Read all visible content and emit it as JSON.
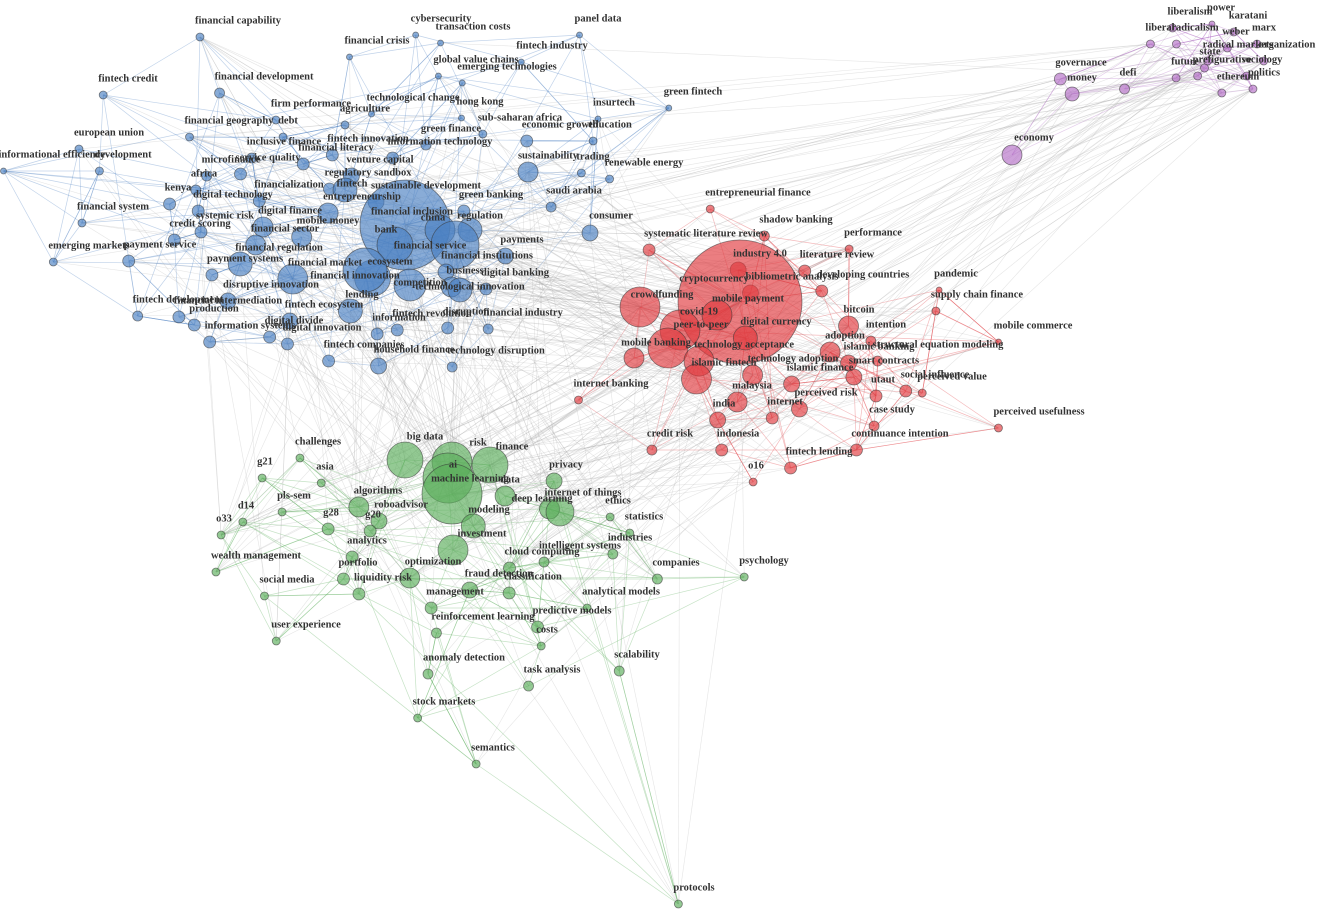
{
  "clusters": [
    {
      "color": "#4a7fc1",
      "nodes": [
        "financial capability",
        "cybersecurity",
        "transaction costs",
        "panel data",
        "financial crisis",
        "fintech industry",
        "global value chains",
        "emerging technologies",
        "fintech credit",
        "financial development",
        "green fintech",
        "technological change",
        "hong kong",
        "insurtech",
        "firm performance",
        "agriculture",
        "financial geography",
        "debt",
        "sub-saharan africa",
        "economic growth",
        "education",
        "green finance",
        "european union",
        "fintech innovation",
        "inclusive finance",
        "information technology",
        "financial literacy",
        "sustainability",
        "trading",
        "renewable energy",
        "informational efficiency",
        "development",
        "microfinance",
        "service quality",
        "venture capital",
        "africa",
        "regulatory sandbox",
        "kenya",
        "financialization",
        "fintech",
        "sustainable development",
        "green banking",
        "saudi arabia",
        "digital technology",
        "entrepreneurship",
        "financial system",
        "digital finance",
        "systemic risk",
        "mobile money",
        "financial inclusion",
        "regulation",
        "consumer",
        "china",
        "credit scoring",
        "financial sector",
        "bank",
        "payments",
        "emerging markets",
        "payment service",
        "financial regulation",
        "financial service",
        "financial institutions",
        "payment systems",
        "financial market",
        "ecosystem",
        "business",
        "digital banking",
        "financial innovation",
        "disruptive innovation",
        "technological innovation",
        "competition",
        "lending",
        "fintech development",
        "financial intermediation",
        "production",
        "fintech ecosystem",
        "disruption",
        "financial industry",
        "information systems",
        "digital divide",
        "digital innovation",
        "information",
        "fintech revolution",
        "fintech companies",
        "household finance",
        "technology disruption"
      ]
    },
    {
      "color": "#e0393e",
      "nodes": [
        "entrepreneurial finance",
        "shadow banking",
        "performance",
        "systematic literature review",
        "literature review",
        "industry 4.0",
        "developing countries",
        "pandemic",
        "bibliometric analysis",
        "crowdfunding",
        "supply chain finance",
        "cryptocurrency",
        "mobile payment",
        "bitcoin",
        "covid-19",
        "digital currency",
        "mobile commerce",
        "intention",
        "peer-to-peer",
        "structural equation modeling",
        "mobile banking",
        "adoption",
        "technology acceptance",
        "islamic banking",
        "technology adoption",
        "smart contracts",
        "islamic fintech",
        "islamic finance",
        "social influence",
        "perceived value",
        "malaysia",
        "utaut",
        "internet banking",
        "perceived risk",
        "internet",
        "india",
        "case study",
        "perceived usefulness",
        "credit risk",
        "indonesia",
        "continuance intention",
        "fintech lending",
        "o16"
      ]
    },
    {
      "color": "#5aad5a",
      "nodes": [
        "big data",
        "challenges",
        "risk",
        "finance",
        "g21",
        "asia",
        "ai",
        "privacy",
        "machine learning",
        "data",
        "algorithms",
        "internet of things",
        "pls-sem",
        "deep learning",
        "ethics",
        "roboadvisor",
        "d14",
        "g28",
        "modeling",
        "g20",
        "o33",
        "statistics",
        "investment",
        "industries",
        "analytics",
        "intelligent systems",
        "cloud computing",
        "wealth management",
        "companies",
        "psychology",
        "portfolio",
        "optimization",
        "fraud detection",
        "classification",
        "social media",
        "liquidity risk",
        "management",
        "analytical models",
        "predictive models",
        "reinforcement learning",
        "costs",
        "user experience",
        "scalability",
        "anomaly detection",
        "task analysis",
        "stock markets",
        "semantics",
        "protocols"
      ]
    },
    {
      "color": "#b36fc6",
      "nodes": [
        "power",
        "liberalism",
        "karatani",
        "liberal",
        "radicalism",
        "weber",
        "marx",
        "radical markets",
        "organization",
        "state",
        "prefigurative",
        "sociology",
        "future",
        "ethereum",
        "politics",
        "governance",
        "money",
        "defi",
        "economy"
      ]
    }
  ]
}
